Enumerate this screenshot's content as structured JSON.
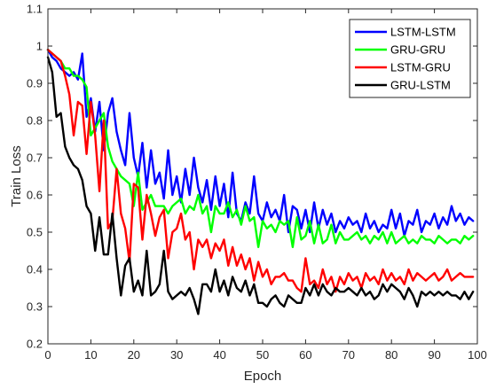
{
  "chart_data": {
    "type": "line",
    "title": "",
    "xlabel": "Epoch",
    "ylabel": "Train Loss",
    "xlim": [
      0,
      100
    ],
    "ylim": [
      0.2,
      1.1
    ],
    "xticks": [
      0,
      10,
      20,
      30,
      40,
      50,
      60,
      70,
      80,
      90,
      100
    ],
    "yticks": [
      0.2,
      0.3,
      0.4,
      0.5,
      0.6,
      0.7,
      0.8,
      0.9,
      1,
      1.1
    ],
    "xtick_labels": [
      "0",
      "10",
      "20",
      "30",
      "40",
      "50",
      "60",
      "70",
      "80",
      "90",
      "100"
    ],
    "ytick_labels": [
      "0.2",
      "0.3",
      "0.4",
      "0.5",
      "0.6",
      "0.7",
      "0.8",
      "0.9",
      "1",
      "1.1"
    ],
    "grid": false,
    "legend_position": "top-right",
    "series": [
      {
        "name": "LSTM-LSTM",
        "color": "#0000ff",
        "values": [
          0.99,
          0.97,
          0.96,
          0.94,
          0.93,
          0.92,
          0.93,
          0.91,
          0.98,
          0.81,
          0.86,
          0.77,
          0.85,
          0.72,
          0.82,
          0.86,
          0.77,
          0.72,
          0.68,
          0.82,
          0.7,
          0.65,
          0.74,
          0.62,
          0.72,
          0.63,
          0.66,
          0.59,
          0.72,
          0.6,
          0.65,
          0.58,
          0.67,
          0.6,
          0.7,
          0.62,
          0.58,
          0.64,
          0.56,
          0.65,
          0.57,
          0.63,
          0.54,
          0.66,
          0.55,
          0.53,
          0.58,
          0.55,
          0.65,
          0.55,
          0.53,
          0.58,
          0.54,
          0.56,
          0.53,
          0.6,
          0.5,
          0.57,
          0.56,
          0.51,
          0.56,
          0.5,
          0.58,
          0.51,
          0.56,
          0.52,
          0.55,
          0.5,
          0.53,
          0.51,
          0.54,
          0.52,
          0.53,
          0.5,
          0.55,
          0.51,
          0.53,
          0.5,
          0.52,
          0.51,
          0.56,
          0.51,
          0.55,
          0.49,
          0.53,
          0.52,
          0.56,
          0.5,
          0.53,
          0.52,
          0.55,
          0.51,
          0.54,
          0.52,
          0.57,
          0.53,
          0.55,
          0.52,
          0.54,
          0.53
        ]
      },
      {
        "name": "GRU-GRU",
        "color": "#00ff00",
        "values": [
          0.99,
          0.98,
          0.97,
          0.96,
          0.94,
          0.94,
          0.92,
          0.92,
          0.91,
          0.89,
          0.76,
          0.78,
          0.8,
          0.82,
          0.73,
          0.69,
          0.67,
          0.65,
          0.64,
          0.63,
          0.57,
          0.66,
          0.56,
          0.58,
          0.6,
          0.57,
          0.57,
          0.57,
          0.55,
          0.57,
          0.58,
          0.59,
          0.55,
          0.57,
          0.56,
          0.6,
          0.55,
          0.57,
          0.5,
          0.57,
          0.55,
          0.55,
          0.58,
          0.54,
          0.56,
          0.52,
          0.57,
          0.53,
          0.54,
          0.46,
          0.53,
          0.51,
          0.52,
          0.5,
          0.53,
          0.52,
          0.53,
          0.46,
          0.54,
          0.48,
          0.49,
          0.53,
          0.47,
          0.52,
          0.47,
          0.48,
          0.52,
          0.47,
          0.5,
          0.48,
          0.48,
          0.49,
          0.5,
          0.48,
          0.49,
          0.47,
          0.49,
          0.48,
          0.5,
          0.47,
          0.5,
          0.47,
          0.48,
          0.49,
          0.47,
          0.48,
          0.47,
          0.49,
          0.48,
          0.48,
          0.47,
          0.49,
          0.48,
          0.47,
          0.48,
          0.48,
          0.47,
          0.49,
          0.48,
          0.49
        ]
      },
      {
        "name": "LSTM-GRU",
        "color": "#ff0000",
        "values": [
          0.99,
          0.98,
          0.97,
          0.96,
          0.92,
          0.87,
          0.76,
          0.85,
          0.84,
          0.71,
          0.85,
          0.76,
          0.61,
          0.8,
          0.51,
          0.53,
          0.67,
          0.55,
          0.51,
          0.42,
          0.63,
          0.62,
          0.48,
          0.6,
          0.55,
          0.49,
          0.54,
          0.56,
          0.43,
          0.5,
          0.51,
          0.55,
          0.48,
          0.5,
          0.4,
          0.48,
          0.46,
          0.48,
          0.43,
          0.47,
          0.45,
          0.48,
          0.41,
          0.46,
          0.41,
          0.44,
          0.4,
          0.43,
          0.37,
          0.42,
          0.38,
          0.4,
          0.36,
          0.38,
          0.38,
          0.39,
          0.37,
          0.37,
          0.35,
          0.34,
          0.43,
          0.36,
          0.37,
          0.35,
          0.4,
          0.36,
          0.38,
          0.34,
          0.38,
          0.36,
          0.39,
          0.37,
          0.38,
          0.35,
          0.39,
          0.37,
          0.38,
          0.36,
          0.4,
          0.37,
          0.39,
          0.37,
          0.38,
          0.36,
          0.4,
          0.37,
          0.39,
          0.38,
          0.37,
          0.38,
          0.39,
          0.37,
          0.38,
          0.4,
          0.37,
          0.38,
          0.39,
          0.38,
          0.38,
          0.38
        ]
      },
      {
        "name": "GRU-LSTM",
        "color": "#000000",
        "values": [
          0.97,
          0.93,
          0.81,
          0.82,
          0.73,
          0.7,
          0.68,
          0.67,
          0.64,
          0.57,
          0.55,
          0.45,
          0.54,
          0.44,
          0.44,
          0.55,
          0.43,
          0.33,
          0.41,
          0.43,
          0.34,
          0.37,
          0.33,
          0.45,
          0.33,
          0.34,
          0.36,
          0.45,
          0.34,
          0.32,
          0.33,
          0.34,
          0.33,
          0.35,
          0.32,
          0.28,
          0.36,
          0.36,
          0.34,
          0.4,
          0.34,
          0.37,
          0.33,
          0.38,
          0.35,
          0.34,
          0.37,
          0.33,
          0.36,
          0.31,
          0.31,
          0.3,
          0.32,
          0.33,
          0.31,
          0.3,
          0.33,
          0.32,
          0.31,
          0.31,
          0.35,
          0.33,
          0.36,
          0.33,
          0.36,
          0.34,
          0.33,
          0.35,
          0.34,
          0.34,
          0.35,
          0.34,
          0.33,
          0.35,
          0.33,
          0.34,
          0.32,
          0.33,
          0.36,
          0.34,
          0.36,
          0.35,
          0.34,
          0.32,
          0.35,
          0.33,
          0.3,
          0.34,
          0.33,
          0.34,
          0.33,
          0.34,
          0.33,
          0.34,
          0.33,
          0.33,
          0.32,
          0.34,
          0.32,
          0.34
        ]
      }
    ]
  }
}
